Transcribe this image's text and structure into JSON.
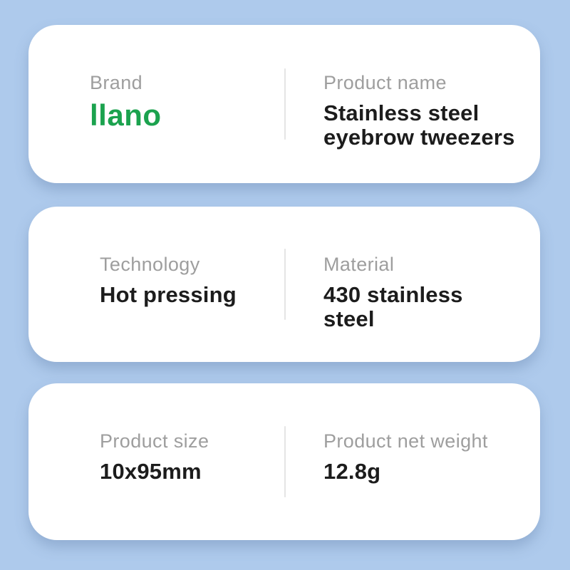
{
  "colors": {
    "background": "#aecaec",
    "card_background": "#ffffff",
    "label_gray": "#9e9e9e",
    "value_black": "#1c1c1c",
    "brand_green": "#1ba24e",
    "divider_gray": "#e4e4e4"
  },
  "cards": [
    {
      "name": "brand-and-product-name",
      "fields": [
        {
          "label": "Brand",
          "value": "llano"
        },
        {
          "label": "Product name",
          "value": "Stainless steel eyebrow tweezers"
        }
      ]
    },
    {
      "name": "technology-and-material",
      "fields": [
        {
          "label": "Technology",
          "value": "Hot pressing"
        },
        {
          "label": "Material",
          "value": "430 stainless steel"
        }
      ]
    },
    {
      "name": "size-and-weight",
      "fields": [
        {
          "label": "Product size",
          "value": "10x95mm"
        },
        {
          "label": "Product net weight",
          "value": "12.8g"
        }
      ]
    }
  ]
}
